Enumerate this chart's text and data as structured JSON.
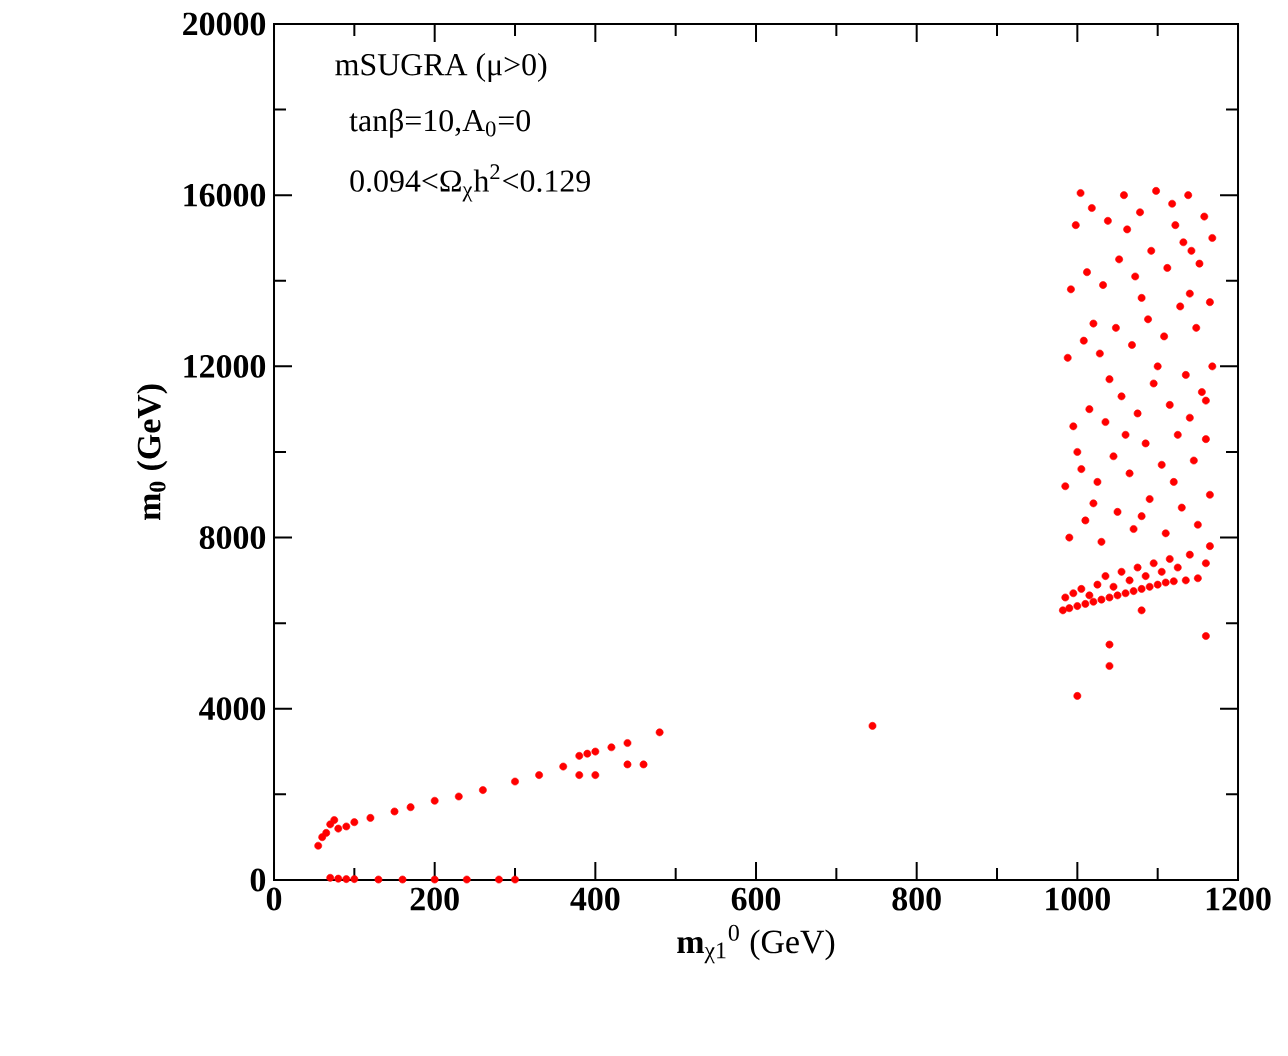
{
  "chart_data": {
    "type": "scatter",
    "xlabel": "**m**$_{χ1}$$^{0}$ (GeV)",
    "ylabel": "m$_{0}$ (GeV)",
    "annotations": [
      "mSUGRA (μ>0)",
      "tanβ=10,A$_{0}$=0",
      "0.094<Ω$_{χ}$h$^{2}$<0.129"
    ],
    "color": "#ff0000",
    "x": [
      55,
      60,
      65,
      70,
      75,
      80,
      90,
      100,
      120,
      150,
      170,
      200,
      230,
      260,
      300,
      330,
      360,
      380,
      390,
      400,
      420,
      440,
      480,
      380,
      400,
      440,
      460,
      70,
      80,
      90,
      100,
      130,
      160,
      200,
      240,
      280,
      300,
      745,
      982,
      990,
      1000,
      1010,
      1020,
      1030,
      1040,
      1050,
      1060,
      1070,
      1080,
      1090,
      1100,
      1110,
      1120,
      1135,
      1150,
      985,
      995,
      1005,
      1015,
      1025,
      1035,
      1045,
      1055,
      1065,
      1075,
      1085,
      1095,
      1105,
      1115,
      1125,
      1140,
      1160,
      1000,
      1040,
      1040,
      1080,
      1160,
      1165,
      990,
      1010,
      1030,
      1050,
      1070,
      1090,
      1110,
      1130,
      1150,
      1165,
      985,
      1005,
      1025,
      1045,
      1065,
      1085,
      1105,
      1125,
      1145,
      1160,
      995,
      1015,
      1035,
      1055,
      1075,
      1095,
      1115,
      1135,
      1155,
      1168,
      988,
      1008,
      1028,
      1048,
      1068,
      1088,
      1108,
      1128,
      1148,
      1165,
      992,
      1012,
      1032,
      1052,
      1072,
      1092,
      1112,
      1132,
      1152,
      1168,
      998,
      1018,
      1038,
      1058,
      1078,
      1098,
      1118,
      1138,
      1158,
      1004,
      1062,
      1122,
      1142,
      1020,
      1080,
      1120,
      1000,
      1060,
      1140,
      1040,
      1100,
      1160,
      1020,
      1080,
      1140
    ],
    "values": [
      800,
      1000,
      1100,
      1300,
      1400,
      1200,
      1250,
      1350,
      1450,
      1600,
      1700,
      1850,
      1950,
      2100,
      2300,
      2450,
      2650,
      2900,
      2950,
      3000,
      3100,
      3200,
      3450,
      2450,
      2450,
      2700,
      2700,
      50,
      30,
      20,
      20,
      10,
      10,
      10,
      10,
      10,
      10,
      3600,
      6300,
      6350,
      6400,
      6450,
      6500,
      6550,
      6600,
      6650,
      6700,
      6750,
      6800,
      6850,
      6900,
      6950,
      6980,
      7000,
      7050,
      6600,
      6700,
      6800,
      6650,
      6900,
      7100,
      6850,
      7200,
      7000,
      7300,
      7100,
      7400,
      7200,
      7500,
      7300,
      7600,
      7400,
      4300,
      5000,
      5500,
      6300,
      5700,
      7800,
      8000,
      8400,
      7900,
      8600,
      8200,
      8900,
      8100,
      8700,
      8300,
      9000,
      9200,
      9600,
      9300,
      9900,
      9500,
      10200,
      9700,
      10400,
      9800,
      10300,
      10600,
      11000,
      10700,
      11300,
      10900,
      11600,
      11100,
      11800,
      11400,
      12000,
      12200,
      12600,
      12300,
      12900,
      12500,
      13100,
      12700,
      13400,
      12900,
      13500,
      13800,
      14200,
      13900,
      14500,
      14100,
      14700,
      14300,
      14900,
      14400,
      15000,
      15300,
      15700,
      15400,
      16000,
      15600,
      16100,
      15800,
      16000,
      15500,
      16050,
      15200,
      15300,
      14700,
      8800,
      8500,
      9300,
      10000,
      10400,
      10800,
      11700,
      12000,
      11200,
      13000,
      13600,
      13700
    ],
    "xlim": [
      0,
      1200
    ],
    "ylim": [
      0,
      20000
    ],
    "xticks": [
      0,
      200,
      400,
      600,
      800,
      1000,
      1200
    ],
    "yticks": [
      0,
      4000,
      8000,
      12000,
      16000,
      20000
    ]
  }
}
